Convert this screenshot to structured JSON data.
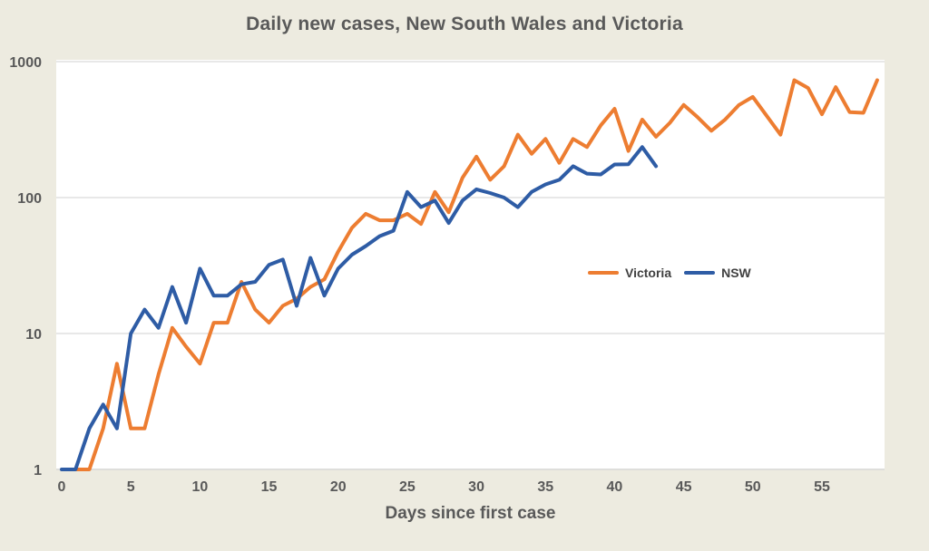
{
  "chart_data": {
    "type": "line",
    "title": "Daily new cases, New South Wales and Victoria",
    "xlabel": "Days since first case",
    "ylabel": "",
    "y_scale": "log",
    "ylim": [
      1,
      1000
    ],
    "y_ticks": [
      1,
      10,
      100,
      1000
    ],
    "x_ticks": [
      0,
      5,
      10,
      15,
      20,
      25,
      30,
      35,
      40,
      45,
      50,
      55
    ],
    "x_range": [
      0,
      59.5
    ],
    "grid": "horizontal",
    "legend_position": "inside-center-right",
    "plot_background": "#FFFFFF",
    "page_background": "#EDEBE0",
    "gridline_color": "#D9D9D9",
    "text_color": "#595959",
    "x_unit": "days since first case",
    "series": [
      {
        "name": "Victoria",
        "color": "#ED7D31",
        "start_day": 1,
        "values": [
          1,
          1,
          2,
          6,
          2,
          2,
          5,
          11,
          8,
          6,
          12,
          12,
          24,
          15,
          12,
          16,
          18,
          22,
          25,
          40,
          60,
          76,
          68,
          68,
          76,
          64,
          110,
          78,
          140,
          200,
          135,
          170,
          290,
          210,
          270,
          180,
          270,
          235,
          340,
          450,
          220,
          375,
          280,
          355,
          480,
          390,
          310,
          375,
          480,
          550,
          400,
          290,
          730,
          640,
          410,
          650,
          425,
          420,
          730
        ]
      },
      {
        "name": "NSW",
        "color": "#2E5CA5",
        "start_day": 0,
        "values": [
          1,
          1,
          2,
          3,
          2,
          10,
          15,
          11,
          22,
          12,
          30,
          19,
          19,
          23,
          24,
          32,
          35,
          16,
          36,
          19,
          30,
          38,
          44,
          52,
          57,
          110,
          85,
          95,
          65,
          95,
          115,
          108,
          100,
          85,
          110,
          125,
          135,
          170,
          150,
          148,
          175,
          176,
          235,
          170
        ]
      }
    ]
  }
}
